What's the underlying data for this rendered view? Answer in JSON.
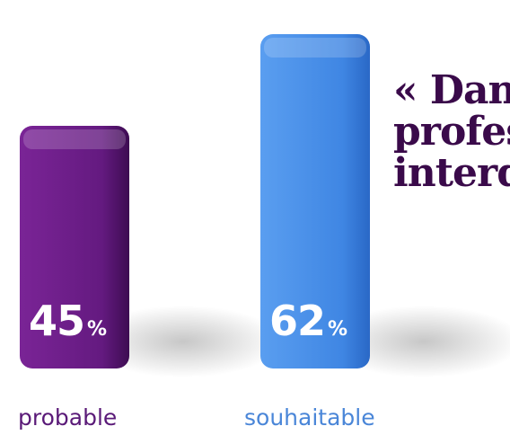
{
  "heading": "« Dans\nprofes\ninterdi",
  "chart_data": {
    "type": "bar",
    "categories": [
      "probable",
      "souhaitable"
    ],
    "values": [
      45,
      62
    ],
    "unit": "%",
    "colors": [
      "#6a1b86",
      "#4a8fe6"
    ],
    "label_colors": [
      "#5a1a78",
      "#4a86d8"
    ],
    "ylim": [
      0,
      70
    ]
  }
}
